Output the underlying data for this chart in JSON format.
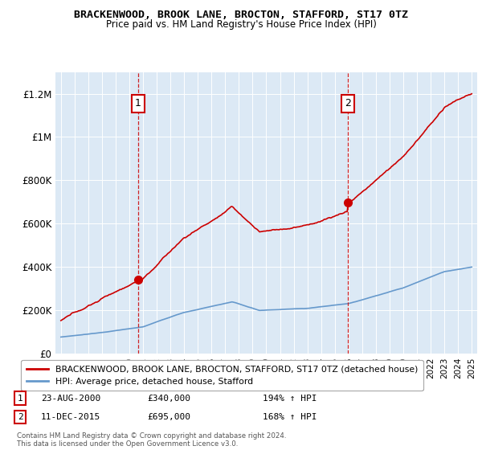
{
  "title": "BRACKENWOOD, BROOK LANE, BROCTON, STAFFORD, ST17 0TZ",
  "subtitle": "Price paid vs. HM Land Registry's House Price Index (HPI)",
  "ylim": [
    0,
    1300000
  ],
  "yticks": [
    0,
    200000,
    400000,
    600000,
    800000,
    1000000,
    1200000
  ],
  "ytick_labels": [
    "£0",
    "£200K",
    "£400K",
    "£600K",
    "£800K",
    "£1M",
    "£1.2M"
  ],
  "x_start_year": 1995,
  "x_end_year": 2025,
  "sale1_date": 2000.64,
  "sale1_price": 340000,
  "sale1_label": "1",
  "sale1_text": "23-AUG-2000",
  "sale1_price_text": "£340,000",
  "sale1_hpi_text": "194% ↑ HPI",
  "sale2_date": 2015.95,
  "sale2_price": 695000,
  "sale2_label": "2",
  "sale2_text": "11-DEC-2015",
  "sale2_price_text": "£695,000",
  "sale2_hpi_text": "168% ↑ HPI",
  "line1_color": "#cc0000",
  "line2_color": "#6699cc",
  "bg_color": "#dce9f5",
  "legend_line1": "BRACKENWOOD, BROOK LANE, BROCTON, STAFFORD, ST17 0TZ (detached house)",
  "legend_line2": "HPI: Average price, detached house, Stafford",
  "footnote": "Contains HM Land Registry data © Crown copyright and database right 2024.\nThis data is licensed under the Open Government Licence v3.0."
}
